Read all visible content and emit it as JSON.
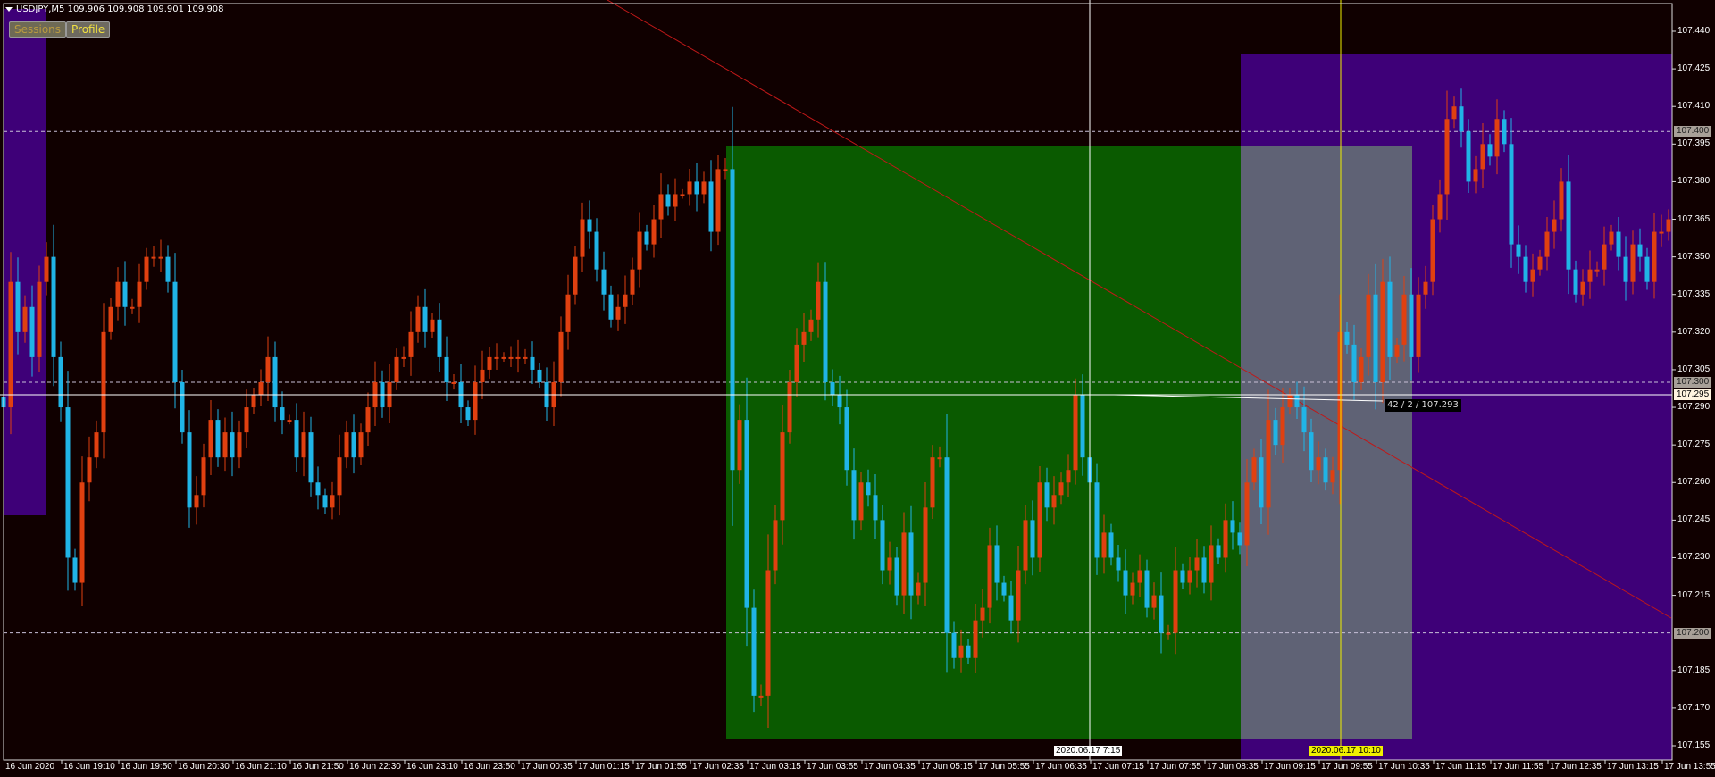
{
  "header": {
    "symbol_line": "USDJPY,M5  109.906 109.908 109.901 109.908"
  },
  "buttons": {
    "sessions": "Sessions",
    "profile": "Profile"
  },
  "colors": {
    "background": "#100000",
    "bull": "#e04010",
    "bear": "#20b4e6",
    "session": "#3e0078",
    "green_zone": "#0a5a00",
    "gray_zone": "#5f6275",
    "trendline": "#c01818",
    "cursor_time": "#f0f000"
  },
  "crosshair": {
    "time_label": "2020.06.17 7:15",
    "price_label": "107.295",
    "measure_label": "42 / 2 / 107.293"
  },
  "marker": {
    "time_label": "2020.06.17 10:10"
  },
  "levels": [
    {
      "price": 107.4,
      "label": "107.400"
    },
    {
      "price": 107.3,
      "label": "107.300"
    },
    {
      "price": 107.2,
      "label": "107.200"
    }
  ],
  "chart_data": {
    "type": "candlestick",
    "timeframe": "M5",
    "ylim": [
      107.1425,
      107.4525
    ],
    "y_ticks": [
      "107.440",
      "107.425",
      "107.410",
      "107.395",
      "107.380",
      "107.365",
      "107.350",
      "107.335",
      "107.320",
      "107.305",
      "107.290",
      "107.275",
      "107.260",
      "107.245",
      "107.230",
      "107.215",
      "107.185",
      "107.170",
      "107.155"
    ],
    "x_ticks": [
      "16 Jun 2020",
      "16 Jun 19:10",
      "16 Jun 19:50",
      "16 Jun 20:30",
      "16 Jun 21:10",
      "16 Jun 21:50",
      "16 Jun 22:30",
      "16 Jun 23:10",
      "16 Jun 23:50",
      "17 Jun 00:35",
      "17 Jun 01:15",
      "17 Jun 01:55",
      "17 Jun 02:35",
      "17 Jun 03:15",
      "17 Jun 03:55",
      "17 Jun 04:35",
      "17 Jun 05:15",
      "17 Jun 05:55",
      "17 Jun 06:35",
      "17 Jun 07:15",
      "17 Jun 07:55",
      "17 Jun 08:35",
      "17 Jun 09:15",
      "17 Jun 09:55",
      "17 Jun 10:35",
      "17 Jun 11:15",
      "17 Jun 11:55",
      "17 Jun 12:35",
      "17 Jun 13:15",
      "17 Jun 13:55"
    ],
    "close": [
      107.29,
      107.34,
      107.32,
      107.33,
      107.31,
      107.34,
      107.35,
      107.31,
      107.29,
      107.23,
      107.22,
      107.26,
      107.27,
      107.28,
      107.32,
      107.33,
      107.34,
      107.33,
      107.33,
      107.34,
      107.35,
      107.35,
      107.35,
      107.34,
      107.3,
      107.28,
      107.25,
      107.255,
      107.27,
      107.285,
      107.27,
      107.28,
      107.27,
      107.28,
      107.29,
      107.295,
      107.3,
      107.31,
      107.29,
      107.285,
      107.285,
      107.27,
      107.28,
      107.26,
      107.255,
      107.25,
      107.255,
      107.27,
      107.28,
      107.27,
      107.28,
      107.29,
      107.3,
      107.29,
      107.3,
      107.31,
      107.31,
      107.32,
      107.33,
      107.32,
      107.325,
      107.31,
      107.3,
      107.3,
      107.29,
      107.285,
      107.3,
      107.305,
      107.31,
      107.31,
      107.31,
      107.31,
      107.31,
      107.31,
      107.305,
      107.3,
      107.29,
      107.3,
      107.32,
      107.335,
      107.35,
      107.365,
      107.36,
      107.345,
      107.335,
      107.325,
      107.33,
      107.335,
      107.345,
      107.36,
      107.355,
      107.365,
      107.375,
      107.37,
      107.375,
      107.375,
      107.38,
      107.375,
      107.38,
      107.36,
      107.385,
      107.385,
      107.265,
      107.285,
      107.21,
      107.175,
      107.175,
      107.225,
      107.245,
      107.28,
      107.3,
      107.315,
      107.32,
      107.325,
      107.34,
      107.3,
      107.295,
      107.29,
      107.265,
      107.245,
      107.26,
      107.255,
      107.245,
      107.225,
      107.23,
      107.215,
      107.24,
      107.215,
      107.22,
      107.25,
      107.27,
      107.27,
      107.2,
      107.19,
      107.195,
      107.19,
      107.205,
      107.21,
      107.235,
      107.22,
      107.215,
      107.205,
      107.225,
      107.245,
      107.23,
      107.26,
      107.25,
      107.255,
      107.26,
      107.265,
      107.295,
      107.27,
      107.26,
      107.23,
      107.24,
      107.23,
      107.225,
      107.215,
      107.22,
      107.225,
      107.21,
      107.215,
      107.2,
      107.2,
      107.225,
      107.22,
      107.225,
      107.23,
      107.22,
      107.235,
      107.23,
      107.245,
      107.24,
      107.235,
      107.26,
      107.27,
      107.25,
      107.285,
      107.275,
      107.29,
      107.295,
      107.29,
      107.28,
      107.265,
      107.27,
      107.26,
      107.265,
      107.32,
      107.315,
      107.3,
      107.31,
      107.335,
      107.3,
      107.34,
      107.31,
      107.315,
      107.335,
      107.31,
      107.335,
      107.34,
      107.365,
      107.375,
      107.405,
      107.41,
      107.4,
      107.38,
      107.385,
      107.395,
      107.39,
      107.405,
      107.395,
      107.355,
      107.35,
      107.34,
      107.345,
      107.35,
      107.36,
      107.365,
      107.38,
      107.345,
      107.335,
      107.34,
      107.345,
      107.345,
      107.355,
      107.36,
      107.35,
      107.34,
      107.355,
      107.35,
      107.34,
      107.36,
      107.36,
      107.365
    ]
  }
}
